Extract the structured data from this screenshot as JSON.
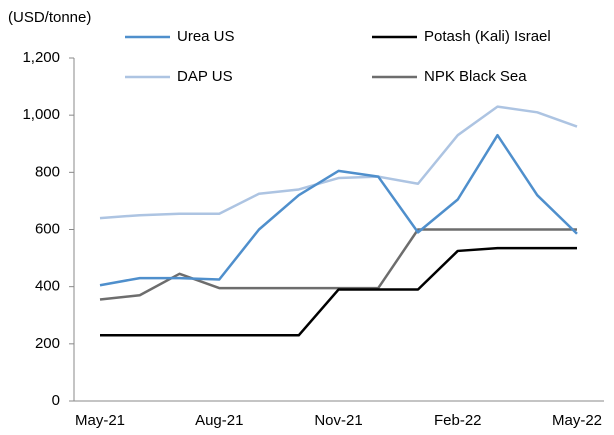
{
  "chart_data": {
    "type": "line",
    "y_label": "(USD/tonne)",
    "categories": [
      "May-21",
      null,
      null,
      "Aug-21",
      null,
      null,
      "Nov-21",
      null,
      null,
      "Feb-22",
      null,
      null,
      "May-22"
    ],
    "ylim": [
      0,
      1200
    ],
    "yticks": [
      0,
      200,
      400,
      600,
      800,
      {
        "value": 1000,
        "label": "1,000"
      },
      {
        "value": 1200,
        "label": "1,200"
      }
    ],
    "grid": false,
    "series": [
      {
        "name": "Urea US",
        "color": "#4f8fcc",
        "values": [
          405,
          430,
          430,
          425,
          600,
          720,
          805,
          785,
          590,
          705,
          930,
          720,
          585
        ]
      },
      {
        "name": "Potash (Kali) Israel",
        "color": "#000000",
        "values": [
          230,
          230,
          230,
          230,
          230,
          230,
          390,
          390,
          390,
          525,
          535,
          535,
          535
        ]
      },
      {
        "name": "DAP US",
        "color": "#adc4e2",
        "values": [
          640,
          650,
          655,
          655,
          725,
          740,
          780,
          785,
          760,
          930,
          1030,
          1010,
          960
        ]
      },
      {
        "name": "NPK Black Sea",
        "color": "#6d6d6d",
        "values": [
          355,
          370,
          445,
          395,
          395,
          395,
          395,
          395,
          600,
          600,
          600,
          600,
          600
        ]
      }
    ]
  }
}
